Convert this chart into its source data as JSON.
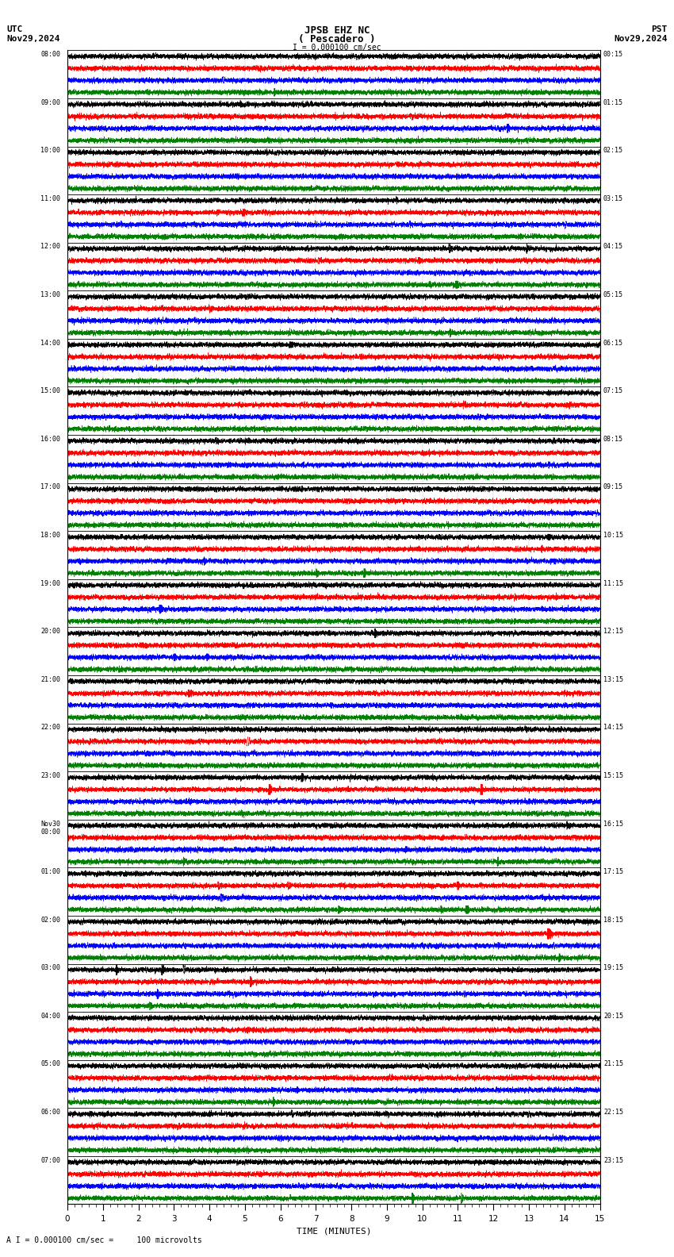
{
  "title_line1": "JPSB EHZ NC",
  "title_line2": "( Pescadero )",
  "scale_label": "I = 0.000100 cm/sec",
  "utc_label": "UTC",
  "utc_date": "Nov29,2024",
  "pst_label": "PST",
  "pst_date": "Nov29,2024",
  "xlabel": "TIME (MINUTES)",
  "footer_label": "A I = 0.000100 cm/sec =     100 microvolts",
  "left_times": [
    "08:00",
    "09:00",
    "10:00",
    "11:00",
    "12:00",
    "13:00",
    "14:00",
    "15:00",
    "16:00",
    "17:00",
    "18:00",
    "19:00",
    "20:00",
    "21:00",
    "22:00",
    "23:00",
    "Nov30\n00:00",
    "01:00",
    "02:00",
    "03:00",
    "04:00",
    "05:00",
    "06:00",
    "07:00"
  ],
  "right_times": [
    "00:15",
    "01:15",
    "02:15",
    "03:15",
    "04:15",
    "05:15",
    "06:15",
    "07:15",
    "08:15",
    "09:15",
    "10:15",
    "11:15",
    "12:15",
    "13:15",
    "14:15",
    "15:15",
    "16:15",
    "17:15",
    "18:15",
    "19:15",
    "20:15",
    "21:15",
    "22:15",
    "23:15"
  ],
  "num_rows": 24,
  "traces_per_row": 4,
  "trace_colors_cycle": [
    "black",
    "red",
    "blue",
    "green"
  ],
  "x_min": 0,
  "x_max": 15,
  "x_ticks": [
    0,
    1,
    2,
    3,
    4,
    5,
    6,
    7,
    8,
    9,
    10,
    11,
    12,
    13,
    14,
    15
  ],
  "background_color": "white",
  "seed": 42
}
